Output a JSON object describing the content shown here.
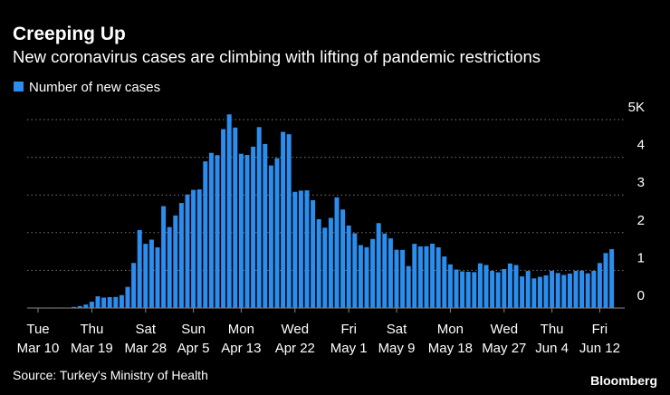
{
  "chart_data": {
    "type": "bar",
    "title": "Creeping Up",
    "subtitle": "New coronavirus cases are climbing with lifting of pandemic restrictions",
    "source": "Source: Turkey's Ministry of Health",
    "brand": "Bloomberg",
    "categories": [
      [
        "Tue",
        "Mar 10"
      ],
      null,
      null,
      null,
      null,
      null,
      null,
      null,
      null,
      [
        "Thu",
        "Mar 19"
      ],
      null,
      null,
      null,
      null,
      null,
      null,
      null,
      null,
      [
        "Sat",
        "Mar 28"
      ],
      null,
      null,
      null,
      null,
      null,
      null,
      null,
      [
        "Sun",
        "Apr 5"
      ],
      null,
      null,
      null,
      null,
      null,
      null,
      null,
      [
        "Mon",
        "Apr 13"
      ],
      null,
      null,
      null,
      null,
      null,
      null,
      null,
      null,
      [
        "Wed",
        "Apr 22"
      ],
      null,
      null,
      null,
      null,
      null,
      null,
      null,
      null,
      [
        "Fri",
        "May 1"
      ],
      null,
      null,
      null,
      null,
      null,
      null,
      null,
      [
        "Sat",
        "May 9"
      ],
      null,
      null,
      null,
      null,
      null,
      null,
      null,
      null,
      [
        "Mon",
        "May 18"
      ],
      null,
      null,
      null,
      null,
      null,
      null,
      null,
      null,
      [
        "Wed",
        "May 27"
      ],
      null,
      null,
      null,
      null,
      null,
      null,
      null,
      [
        "Thu",
        "Jun 4"
      ],
      null,
      null,
      null,
      null,
      null,
      null,
      null,
      [
        "Fri",
        "Jun 12"
      ],
      null,
      null
    ],
    "series": [
      {
        "name": "Number of new cases",
        "color": "#2b8ded",
        "values": [
          0,
          1,
          0,
          4,
          1,
          12,
          29,
          51,
          93,
          168,
          311,
          277,
          289,
          293,
          343,
          561,
          1196,
          2069,
          1704,
          1815,
          1610,
          2704,
          2148,
          2456,
          2786,
          3013,
          3135,
          3148,
          3892,
          4117,
          4056,
          4747,
          5138,
          4789,
          4093,
          4062,
          4281,
          4801,
          4353,
          3783,
          3977,
          4674,
          4611,
          3083,
          3116,
          3122,
          2861,
          2357,
          2131,
          2392,
          2936,
          2615,
          2188,
          1983,
          1670,
          1614,
          1832,
          2253,
          1977,
          1848,
          1546,
          1542,
          1114,
          1704,
          1635,
          1639,
          1708,
          1610,
          1368,
          1158,
          1022,
          972,
          961,
          952,
          1186,
          1141,
          987,
          948,
          1035,
          1182,
          1141,
          839,
          983,
          786,
          827,
          867,
          988,
          930,
          878,
          914,
          989,
          993,
          922,
          987,
          1195,
          1459,
          1562
        ]
      }
    ],
    "ylim": [
      0,
      5000
    ],
    "yticks": [
      0,
      {
        "value": 1000,
        "label": "1"
      },
      {
        "value": 2000,
        "label": "2"
      },
      {
        "value": 3000,
        "label": "3"
      },
      {
        "value": 4000,
        "label": "4"
      },
      {
        "value": 5000,
        "label": "5K"
      }
    ],
    "grid": true
  }
}
